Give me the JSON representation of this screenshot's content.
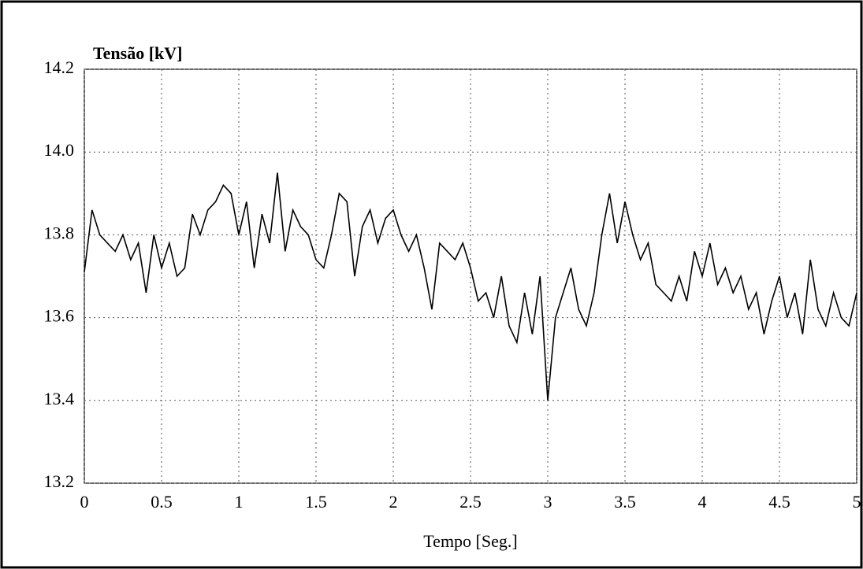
{
  "chart_data": {
    "type": "line",
    "title": "Tensão [kV]",
    "x_label": "Tempo [Seg.]",
    "color": "#000000",
    "grid": true,
    "xlim": [
      0,
      5
    ],
    "ylim": [
      13.2,
      14.2
    ],
    "xticks": [
      0,
      0.5,
      1,
      1.5,
      2,
      2.5,
      3,
      3.5,
      4,
      4.5,
      5
    ],
    "yticks": [
      13.2,
      13.4,
      13.6,
      13.8,
      {
        "value": 14,
        "label": "14.0"
      },
      14.2
    ],
    "x": [
      0,
      0.05,
      0.1,
      0.15,
      0.2,
      0.25,
      0.3,
      0.35,
      0.4,
      0.45,
      0.5,
      0.55,
      0.6,
      0.65,
      0.7,
      0.75,
      0.8,
      0.85,
      0.9,
      0.95,
      1,
      1.05,
      1.1,
      1.15,
      1.2,
      1.25,
      1.3,
      1.35,
      1.4,
      1.45,
      1.5,
      1.55,
      1.6,
      1.65,
      1.7,
      1.75,
      1.8,
      1.85,
      1.9,
      1.95,
      2,
      2.05,
      2.1,
      2.15,
      2.2,
      2.25,
      2.3,
      2.35,
      2.4,
      2.45,
      2.5,
      2.55,
      2.6,
      2.65,
      2.7,
      2.75,
      2.8,
      2.85,
      2.9,
      2.95,
      3,
      3.05,
      3.1,
      3.15,
      3.2,
      3.25,
      3.3,
      3.35,
      3.4,
      3.45,
      3.5,
      3.55,
      3.6,
      3.65,
      3.7,
      3.75,
      3.8,
      3.85,
      3.9,
      3.95,
      4,
      4.05,
      4.1,
      4.15,
      4.2,
      4.25,
      4.3,
      4.35,
      4.4,
      4.45,
      4.5,
      4.55,
      4.6,
      4.65,
      4.7,
      4.75,
      4.8,
      4.85,
      4.9,
      4.95,
      5
    ],
    "values": [
      13.71,
      13.86,
      13.8,
      13.78,
      13.76,
      13.8,
      13.74,
      13.78,
      13.66,
      13.8,
      13.72,
      13.78,
      13.7,
      13.72,
      13.85,
      13.8,
      13.86,
      13.88,
      13.92,
      13.9,
      13.8,
      13.88,
      13.72,
      13.85,
      13.78,
      13.95,
      13.76,
      13.86,
      13.82,
      13.8,
      13.74,
      13.72,
      13.8,
      13.9,
      13.88,
      13.7,
      13.82,
      13.86,
      13.78,
      13.84,
      13.86,
      13.8,
      13.76,
      13.8,
      13.72,
      13.62,
      13.78,
      13.76,
      13.74,
      13.78,
      13.72,
      13.64,
      13.66,
      13.6,
      13.7,
      13.58,
      13.54,
      13.66,
      13.56,
      13.7,
      13.4,
      13.6,
      13.66,
      13.72,
      13.62,
      13.58,
      13.66,
      13.8,
      13.9,
      13.78,
      13.88,
      13.8,
      13.74,
      13.78,
      13.68,
      13.66,
      13.64,
      13.7,
      13.64,
      13.76,
      13.7,
      13.78,
      13.68,
      13.72,
      13.66,
      13.7,
      13.62,
      13.66,
      13.56,
      13.64,
      13.7,
      13.6,
      13.66,
      13.56,
      13.74,
      13.62,
      13.58,
      13.66,
      13.6,
      13.58,
      13.66
    ]
  }
}
